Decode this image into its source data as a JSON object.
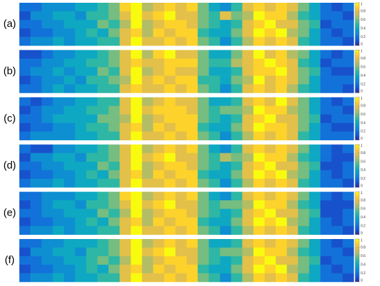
{
  "chart_data": [
    {
      "type": "heatmap",
      "label": "(a)",
      "zlim": [
        0,
        1
      ],
      "zticks": [
        0,
        0.2,
        0.4,
        0.6,
        0.8,
        1
      ],
      "colormap": [
        "#352a87",
        "#0f5cdd",
        "#1481d6",
        "#06a4ca",
        "#2eb7a4",
        "#87bf77",
        "#d1bb59",
        "#fec832",
        "#f9fb0e"
      ],
      "values": [
        [
          0.2,
          0.2,
          0.3,
          0.3,
          0.3,
          0.4,
          0.4,
          0.5,
          0.6,
          0.9,
          1.0,
          0.7,
          0.8,
          0.9,
          0.8,
          0.9,
          0.6,
          0.4,
          0.3,
          0.5,
          0.8,
          0.9,
          0.8,
          0.9,
          0.8,
          0.6,
          0.4,
          0.2,
          0.1,
          0.2
        ],
        [
          0.1,
          0.3,
          0.3,
          0.4,
          0.4,
          0.3,
          0.5,
          0.5,
          0.6,
          0.8,
          1.0,
          0.8,
          0.9,
          1.0,
          0.8,
          0.8,
          0.6,
          0.5,
          0.8,
          0.6,
          0.7,
          1.0,
          0.9,
          0.9,
          0.7,
          0.5,
          0.4,
          0.2,
          0.2,
          0.1
        ],
        [
          0.2,
          0.2,
          0.3,
          0.3,
          0.4,
          0.4,
          0.4,
          0.6,
          0.5,
          0.7,
          1.0,
          0.7,
          0.8,
          0.9,
          0.9,
          0.8,
          0.6,
          0.5,
          0.4,
          0.5,
          0.8,
          0.9,
          1.0,
          0.8,
          0.8,
          0.6,
          0.5,
          0.1,
          0.2,
          0.2
        ],
        [
          0.1,
          0.2,
          0.2,
          0.3,
          0.3,
          0.4,
          0.5,
          0.4,
          0.6,
          0.8,
          0.9,
          0.7,
          0.9,
          0.8,
          0.9,
          0.9,
          0.5,
          0.4,
          0.4,
          0.6,
          0.8,
          1.0,
          0.9,
          1.0,
          0.7,
          0.6,
          0.4,
          0.2,
          0.1,
          0.2
        ],
        [
          0.2,
          0.3,
          0.3,
          0.4,
          0.3,
          0.4,
          0.4,
          0.5,
          0.5,
          0.8,
          1.0,
          0.8,
          0.8,
          0.9,
          0.8,
          0.9,
          0.6,
          0.5,
          0.3,
          0.5,
          0.7,
          0.9,
          0.8,
          0.9,
          0.8,
          0.5,
          0.4,
          0.2,
          0.2,
          0.1
        ]
      ]
    },
    {
      "type": "heatmap",
      "label": "(b)",
      "zlim": [
        0,
        1
      ],
      "zticks": [
        0,
        0.2,
        0.4,
        0.6,
        0.8,
        1
      ],
      "colormap": [
        "#352a87",
        "#0f5cdd",
        "#1481d6",
        "#06a4ca",
        "#2eb7a4",
        "#87bf77",
        "#d1bb59",
        "#fec832",
        "#f9fb0e"
      ],
      "values": [
        [
          0.1,
          0.1,
          0.2,
          0.3,
          0.3,
          0.4,
          0.4,
          0.5,
          0.6,
          0.8,
          1.0,
          0.7,
          0.9,
          1.0,
          0.8,
          0.8,
          0.6,
          0.4,
          0.4,
          0.6,
          0.8,
          1.0,
          0.8,
          0.9,
          0.7,
          0.6,
          0.4,
          0.2,
          0.1,
          0.2
        ],
        [
          0.2,
          0.2,
          0.3,
          0.3,
          0.4,
          0.4,
          0.5,
          0.5,
          0.6,
          0.8,
          0.9,
          0.8,
          0.8,
          0.9,
          0.9,
          0.9,
          0.6,
          0.5,
          0.5,
          0.7,
          0.8,
          0.9,
          1.0,
          0.9,
          0.8,
          0.5,
          0.4,
          0.1,
          0.2,
          0.2
        ],
        [
          0.2,
          0.3,
          0.3,
          0.4,
          0.3,
          0.4,
          0.4,
          0.6,
          0.5,
          0.8,
          1.0,
          0.7,
          0.8,
          0.9,
          0.8,
          0.8,
          0.6,
          0.4,
          0.4,
          0.5,
          0.8,
          0.9,
          0.9,
          1.0,
          0.8,
          0.6,
          0.5,
          0.2,
          0.1,
          0.1
        ],
        [
          0.1,
          0.2,
          0.3,
          0.3,
          0.4,
          0.3,
          0.5,
          0.5,
          0.6,
          0.7,
          1.0,
          0.8,
          0.9,
          0.8,
          0.9,
          0.9,
          0.5,
          0.5,
          0.4,
          0.6,
          0.7,
          1.0,
          0.8,
          0.9,
          0.8,
          0.6,
          0.4,
          0.2,
          0.2,
          0.2
        ],
        [
          0.2,
          0.2,
          0.3,
          0.4,
          0.3,
          0.4,
          0.4,
          0.5,
          0.5,
          0.8,
          0.9,
          0.8,
          0.8,
          0.9,
          0.8,
          0.9,
          0.6,
          0.5,
          0.3,
          0.5,
          0.8,
          0.9,
          0.8,
          0.9,
          0.7,
          0.5,
          0.4,
          0.2,
          0.2,
          0.1
        ]
      ]
    },
    {
      "type": "heatmap",
      "label": "(c)",
      "zlim": [
        0,
        1
      ],
      "zticks": [
        0,
        0.2,
        0.4,
        0.6,
        0.8,
        1
      ],
      "colormap": [
        "#352a87",
        "#0f5cdd",
        "#1481d6",
        "#06a4ca",
        "#2eb7a4",
        "#87bf77",
        "#d1bb59",
        "#fec832",
        "#f9fb0e"
      ],
      "values": [
        [
          0.2,
          0.1,
          0.2,
          0.3,
          0.3,
          0.4,
          0.4,
          0.5,
          0.5,
          0.8,
          1.0,
          0.7,
          0.8,
          0.9,
          0.8,
          0.8,
          0.6,
          0.4,
          0.4,
          0.5,
          0.8,
          0.9,
          0.8,
          1.0,
          0.8,
          0.6,
          0.4,
          0.2,
          0.1,
          0.2
        ],
        [
          0.1,
          0.2,
          0.3,
          0.3,
          0.4,
          0.4,
          0.5,
          0.5,
          0.6,
          0.8,
          1.0,
          0.8,
          0.9,
          0.9,
          0.9,
          0.8,
          0.6,
          0.5,
          0.6,
          0.6,
          0.7,
          1.0,
          0.9,
          0.9,
          0.7,
          0.6,
          0.4,
          0.2,
          0.2,
          0.1
        ],
        [
          0.2,
          0.2,
          0.3,
          0.4,
          0.4,
          0.4,
          0.4,
          0.6,
          0.6,
          0.7,
          1.0,
          0.7,
          0.8,
          0.9,
          0.9,
          0.9,
          0.6,
          0.5,
          0.4,
          0.5,
          0.8,
          0.9,
          1.0,
          0.8,
          0.8,
          0.6,
          0.5,
          0.1,
          0.2,
          0.2
        ],
        [
          0.1,
          0.2,
          0.2,
          0.3,
          0.3,
          0.4,
          0.5,
          0.5,
          0.6,
          0.8,
          0.9,
          0.7,
          0.9,
          0.8,
          0.9,
          0.9,
          0.5,
          0.4,
          0.4,
          0.6,
          0.8,
          1.0,
          0.9,
          0.9,
          0.8,
          0.6,
          0.4,
          0.2,
          0.1,
          0.1
        ],
        [
          0.2,
          0.3,
          0.3,
          0.3,
          0.3,
          0.4,
          0.4,
          0.5,
          0.5,
          0.8,
          1.0,
          0.8,
          0.8,
          0.9,
          0.8,
          0.9,
          0.6,
          0.5,
          0.3,
          0.5,
          0.7,
          0.9,
          0.8,
          0.9,
          0.8,
          0.5,
          0.4,
          0.2,
          0.2,
          0.2
        ]
      ]
    },
    {
      "type": "heatmap",
      "label": "(d)",
      "zlim": [
        0,
        1
      ],
      "zticks": [
        0,
        0.2,
        0.4,
        0.6,
        0.8,
        1
      ],
      "colormap": [
        "#352a87",
        "#0f5cdd",
        "#1481d6",
        "#06a4ca",
        "#2eb7a4",
        "#87bf77",
        "#d1bb59",
        "#fec832",
        "#f9fb0e"
      ],
      "values": [
        [
          0.2,
          0.1,
          0.1,
          0.3,
          0.3,
          0.4,
          0.4,
          0.5,
          0.6,
          0.8,
          1.0,
          0.7,
          0.8,
          0.9,
          0.8,
          0.9,
          0.6,
          0.4,
          0.3,
          0.5,
          0.8,
          0.9,
          0.8,
          0.9,
          0.8,
          0.6,
          0.4,
          0.2,
          0.1,
          0.2
        ],
        [
          0.1,
          0.3,
          0.3,
          0.4,
          0.4,
          0.3,
          0.5,
          0.5,
          0.6,
          0.8,
          1.0,
          0.8,
          0.9,
          1.0,
          0.8,
          0.8,
          0.6,
          0.5,
          0.7,
          0.6,
          0.7,
          1.0,
          0.9,
          0.9,
          0.7,
          0.5,
          0.4,
          0.2,
          0.1,
          0.1
        ],
        [
          0.2,
          0.2,
          0.3,
          0.3,
          0.4,
          0.4,
          0.4,
          0.6,
          0.5,
          0.8,
          1.0,
          0.7,
          0.8,
          0.9,
          0.9,
          0.8,
          0.6,
          0.5,
          0.4,
          0.5,
          0.8,
          0.9,
          1.0,
          0.8,
          0.8,
          0.6,
          0.5,
          0.1,
          0.1,
          0.2
        ],
        [
          0.1,
          0.2,
          0.2,
          0.3,
          0.3,
          0.4,
          0.5,
          0.4,
          0.6,
          0.8,
          0.9,
          0.7,
          0.9,
          0.8,
          0.9,
          0.9,
          0.5,
          0.4,
          0.4,
          0.6,
          0.8,
          1.0,
          0.9,
          1.0,
          0.7,
          0.6,
          0.4,
          0.2,
          0.1,
          0.2
        ],
        [
          0.2,
          0.3,
          0.3,
          0.4,
          0.3,
          0.4,
          0.4,
          0.5,
          0.5,
          0.8,
          1.0,
          0.8,
          0.8,
          0.9,
          0.8,
          0.9,
          0.6,
          0.5,
          0.3,
          0.5,
          0.7,
          0.9,
          0.8,
          0.9,
          0.8,
          0.5,
          0.4,
          0.2,
          0.2,
          0.1
        ]
      ]
    },
    {
      "type": "heatmap",
      "label": "(e)",
      "zlim": [
        0,
        1
      ],
      "zticks": [
        0,
        0.2,
        0.4,
        0.6,
        0.8,
        1
      ],
      "colormap": [
        "#352a87",
        "#0f5cdd",
        "#1481d6",
        "#06a4ca",
        "#2eb7a4",
        "#87bf77",
        "#d1bb59",
        "#fec832",
        "#f9fb0e"
      ],
      "values": [
        [
          0.2,
          0.2,
          0.3,
          0.3,
          0.3,
          0.4,
          0.4,
          0.5,
          0.6,
          0.9,
          1.0,
          0.7,
          0.8,
          0.9,
          0.8,
          0.9,
          0.6,
          0.4,
          0.3,
          0.5,
          0.8,
          0.9,
          0.8,
          0.9,
          0.8,
          0.6,
          0.4,
          0.2,
          0.1,
          0.2
        ],
        [
          0.1,
          0.2,
          0.3,
          0.4,
          0.4,
          0.3,
          0.5,
          0.5,
          0.6,
          0.8,
          1.0,
          0.8,
          0.9,
          1.0,
          0.8,
          0.8,
          0.6,
          0.5,
          0.6,
          0.6,
          0.7,
          1.0,
          0.9,
          0.9,
          0.7,
          0.5,
          0.4,
          0.1,
          0.1,
          0.1
        ],
        [
          0.2,
          0.2,
          0.3,
          0.3,
          0.4,
          0.4,
          0.4,
          0.6,
          0.5,
          0.7,
          1.0,
          0.7,
          0.8,
          0.9,
          0.9,
          0.8,
          0.6,
          0.5,
          0.4,
          0.5,
          0.8,
          0.9,
          1.0,
          0.8,
          0.8,
          0.6,
          0.5,
          0.1,
          0.1,
          0.2
        ],
        [
          0.1,
          0.2,
          0.2,
          0.3,
          0.3,
          0.4,
          0.5,
          0.4,
          0.6,
          0.8,
          0.9,
          0.7,
          0.9,
          0.8,
          0.9,
          0.9,
          0.5,
          0.4,
          0.4,
          0.6,
          0.8,
          1.0,
          0.9,
          1.0,
          0.7,
          0.6,
          0.4,
          0.2,
          0.1,
          0.2
        ],
        [
          0.2,
          0.3,
          0.3,
          0.4,
          0.3,
          0.4,
          0.4,
          0.5,
          0.5,
          0.8,
          1.0,
          0.8,
          0.8,
          0.9,
          0.8,
          0.9,
          0.6,
          0.5,
          0.3,
          0.5,
          0.7,
          0.9,
          0.8,
          0.9,
          0.8,
          0.5,
          0.4,
          0.2,
          0.2,
          0.1
        ]
      ]
    },
    {
      "type": "heatmap",
      "label": "(f)",
      "zlim": [
        0,
        1
      ],
      "zticks": [
        0,
        0.2,
        0.4,
        0.6,
        0.8,
        1
      ],
      "colormap": [
        "#352a87",
        "#0f5cdd",
        "#1481d6",
        "#06a4ca",
        "#2eb7a4",
        "#87bf77",
        "#d1bb59",
        "#fec832",
        "#f9fb0e"
      ],
      "values": [
        [
          0.2,
          0.2,
          0.3,
          0.3,
          0.4,
          0.4,
          0.4,
          0.5,
          0.6,
          0.8,
          1.0,
          0.7,
          0.8,
          0.9,
          0.8,
          0.9,
          0.6,
          0.4,
          0.4,
          0.5,
          0.8,
          0.9,
          0.8,
          0.9,
          0.8,
          0.6,
          0.4,
          0.2,
          0.1,
          0.2
        ],
        [
          0.1,
          0.3,
          0.3,
          0.4,
          0.4,
          0.3,
          0.5,
          0.5,
          0.6,
          0.8,
          1.0,
          0.8,
          0.9,
          1.0,
          0.8,
          0.8,
          0.6,
          0.5,
          0.6,
          0.6,
          0.7,
          1.0,
          0.9,
          0.9,
          0.7,
          0.5,
          0.4,
          0.2,
          0.2,
          0.1
        ],
        [
          0.2,
          0.2,
          0.3,
          0.3,
          0.4,
          0.4,
          0.5,
          0.6,
          0.5,
          0.7,
          1.0,
          0.7,
          0.8,
          0.9,
          0.9,
          0.8,
          0.6,
          0.5,
          0.4,
          0.5,
          0.8,
          0.9,
          1.0,
          0.8,
          0.8,
          0.6,
          0.5,
          0.1,
          0.2,
          0.2
        ],
        [
          0.1,
          0.2,
          0.2,
          0.3,
          0.3,
          0.4,
          0.5,
          0.4,
          0.6,
          0.8,
          0.9,
          0.7,
          0.9,
          0.8,
          0.9,
          0.9,
          0.5,
          0.4,
          0.4,
          0.6,
          0.8,
          1.0,
          0.9,
          1.0,
          0.7,
          0.6,
          0.4,
          0.2,
          0.1,
          0.2
        ],
        [
          0.2,
          0.3,
          0.3,
          0.4,
          0.3,
          0.4,
          0.4,
          0.5,
          0.5,
          0.8,
          1.0,
          0.8,
          0.8,
          0.9,
          0.8,
          0.9,
          0.6,
          0.5,
          0.3,
          0.5,
          0.7,
          0.9,
          0.8,
          0.9,
          0.8,
          0.5,
          0.4,
          0.2,
          0.2,
          0.1
        ]
      ]
    }
  ]
}
